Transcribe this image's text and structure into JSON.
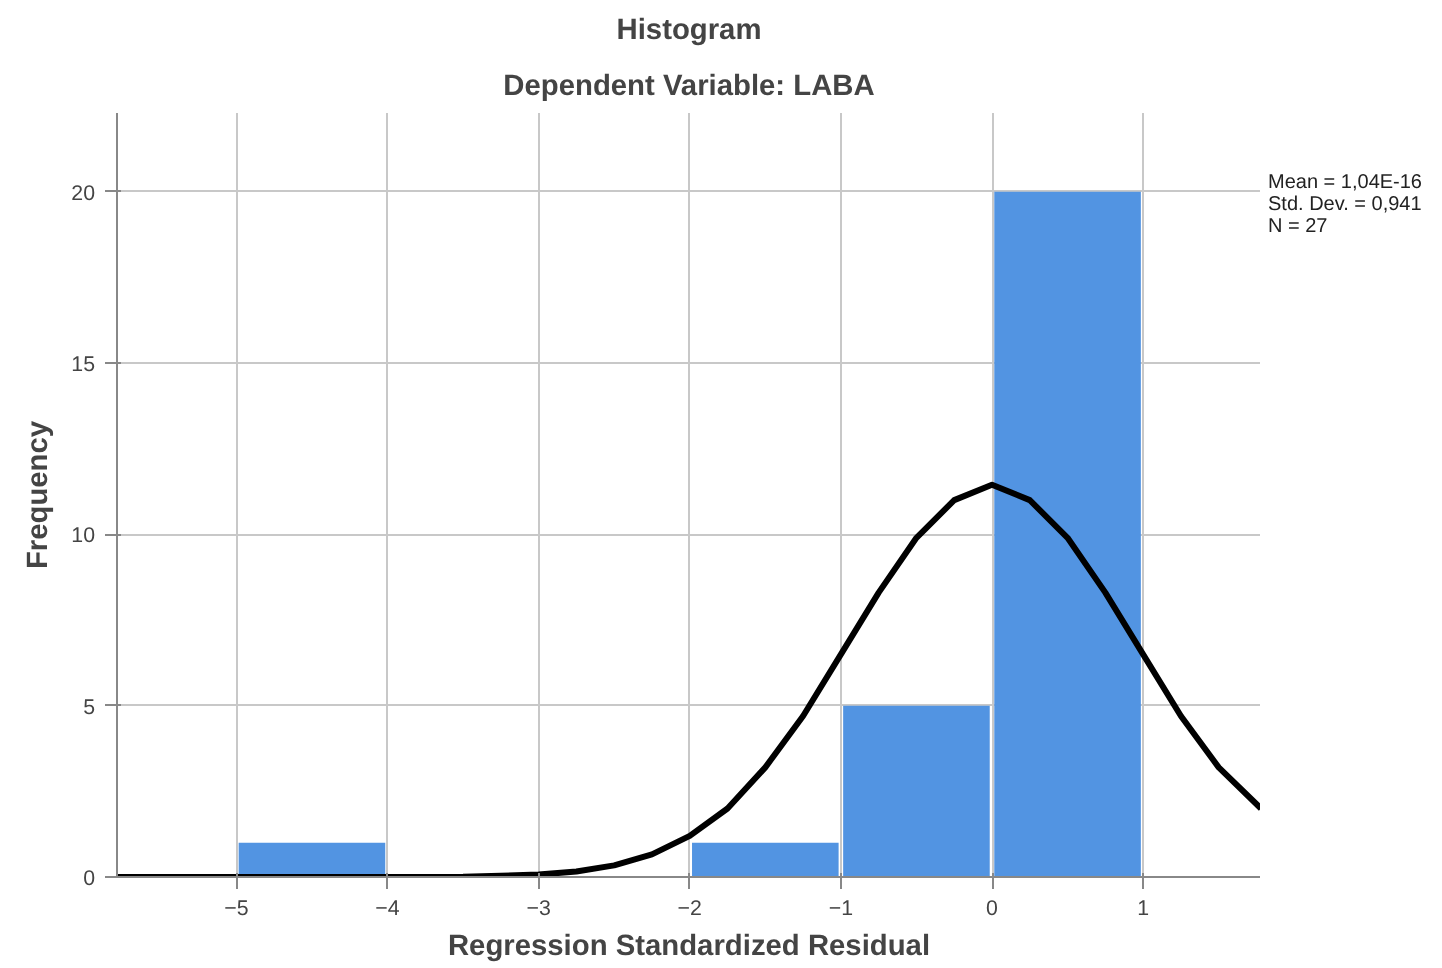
{
  "chart_data": {
    "type": "histogram",
    "title": "Histogram",
    "subtitle": "Dependent Variable: LABA",
    "xlabel": "Regression Standardized Residual",
    "ylabel": "Frequency",
    "bins": [
      -5,
      -4,
      -3,
      -2,
      -1,
      0,
      1
    ],
    "values": [
      1,
      0,
      0,
      1,
      5,
      20
    ],
    "color": "#5294e2",
    "series": [
      {
        "type": "line",
        "color": "#000000",
        "x": [
          -5.79,
          -4,
          -3.5,
          -3,
          -2.75,
          -2.5,
          -2.25,
          -2,
          -1.75,
          -1.5,
          -1.25,
          -1,
          -0.75,
          -0.5,
          -0.25,
          0,
          0.25,
          0.5,
          0.75,
          1,
          1.25,
          1.5,
          1.78
        ],
        "values": [
          0,
          0,
          0.01,
          0.07,
          0.16,
          0.34,
          0.66,
          1.2,
          2.0,
          3.2,
          4.7,
          6.5,
          8.3,
          9.9,
          11.0,
          11.45,
          11.0,
          9.9,
          8.3,
          6.5,
          4.7,
          3.2,
          2.0
        ]
      }
    ],
    "xlim": [
      -5.79,
      1.78
    ],
    "ylim": [
      0,
      22.3
    ],
    "xticks": [
      -5,
      -4,
      -3,
      -2,
      -1,
      0,
      1
    ],
    "yticks": [
      0,
      5,
      10,
      15,
      20
    ],
    "grid": true,
    "annotations": [
      "Mean = 1,04E-16",
      "Std. Dev. = 0,941",
      "N = 27"
    ]
  }
}
